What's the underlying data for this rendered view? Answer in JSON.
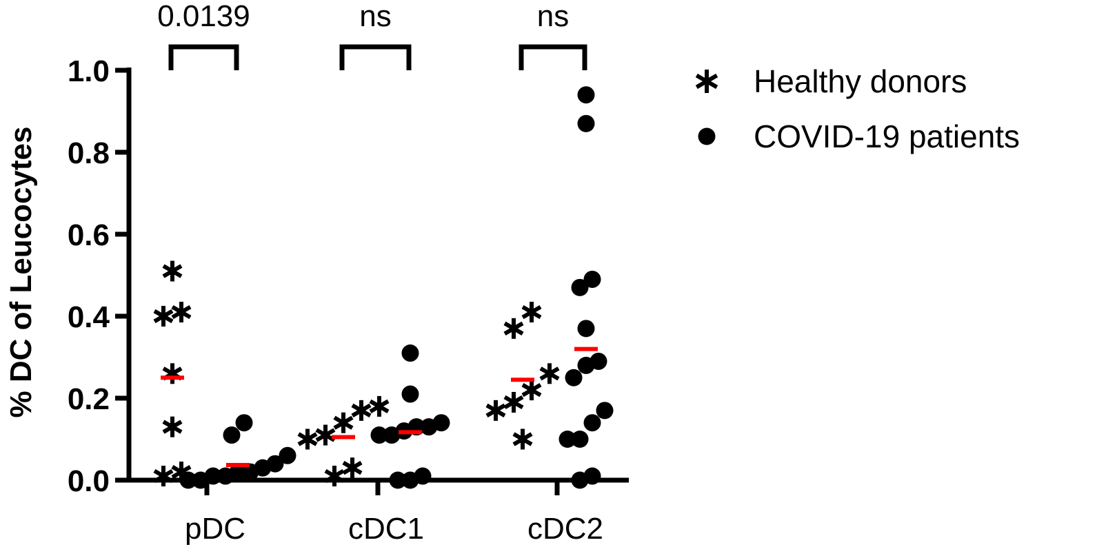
{
  "chart_data": {
    "type": "scatter",
    "ylabel": "% DC of Leucocytes",
    "xlabel": "",
    "ylim": [
      0,
      1.0
    ],
    "yticks": [
      "0.0",
      "0.2",
      "0.4",
      "0.6",
      "0.8",
      "1.0"
    ],
    "categories": [
      "pDC",
      "cDC1",
      "cDC2"
    ],
    "series": [
      {
        "name": "Healthy donors",
        "marker": "asterisk",
        "color": "#000000",
        "groups": [
          [
            0.51,
            0.4,
            0.41,
            0.26,
            0.13,
            0.01,
            0.02
          ],
          [
            0.18,
            0.17,
            0.14,
            0.11,
            0.1,
            0.01,
            0.03
          ],
          [
            0.41,
            0.37,
            0.26,
            0.22,
            0.19,
            0.17,
            0.1
          ]
        ]
      },
      {
        "name": "COVID-19 patients",
        "marker": "circle",
        "color": "#000000",
        "groups": [
          [
            0.14,
            0.11,
            0.06,
            0.04,
            0.03,
            0.02,
            0.02,
            0.01,
            0.01,
            0.0,
            0.0
          ],
          [
            0.31,
            0.21,
            0.14,
            0.13,
            0.13,
            0.12,
            0.11,
            0.11,
            0.01,
            0.0,
            0.0
          ],
          [
            0.94,
            0.87,
            0.49,
            0.47,
            0.37,
            0.29,
            0.28,
            0.25,
            0.17,
            0.14,
            0.1,
            0.1,
            0.01,
            0.0
          ]
        ]
      }
    ],
    "means": {
      "Healthy donors": [
        0.25,
        0.105,
        0.245
      ],
      "COVID-19 patients": [
        0.037,
        0.117,
        0.32
      ],
      "color": "#ff0000"
    },
    "significance": [
      "0.0139",
      "ns",
      "ns"
    ],
    "legend": {
      "placement": "top-right"
    },
    "grid": false
  }
}
